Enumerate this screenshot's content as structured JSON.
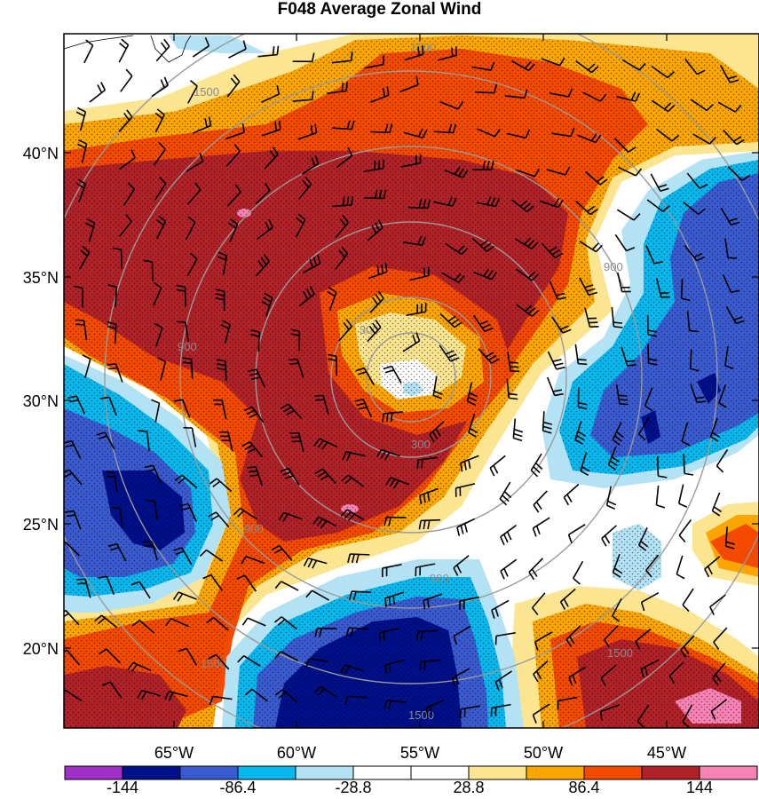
{
  "title": "F048 Average Zonal Wind",
  "lat_labels": [
    "40°N",
    "35°N",
    "30°N",
    "25°N",
    "20°N"
  ],
  "lon_labels": [
    "65°W",
    "60°W",
    "55°W",
    "50°W",
    "45°W"
  ],
  "colorbar": {
    "labels": [
      "-144",
      "-86.4",
      "-28.8",
      "28.8",
      "86.4",
      "144"
    ],
    "colors": [
      "#a030c8",
      "#00108a",
      "#3a5bd0",
      "#06b8ee",
      "#b3e2f5",
      "#ffffff",
      "#ffffff",
      "#fbe590",
      "#fba500",
      "#f44a00",
      "#b02228",
      "#f782b4"
    ]
  },
  "range_rings": [
    "1500",
    "1500",
    "1500",
    "900",
    "900",
    "900",
    "300",
    "300",
    "1500",
    "1500",
    "900"
  ],
  "palette": {
    "dark_red": "#b02228",
    "red_orange": "#f44a00",
    "orange": "#fba500",
    "yellow": "#fbe590",
    "light_blue": "#b3e2f5",
    "cyan": "#06b8ee",
    "blue": "#3a5bd0",
    "navy": "#00108a",
    "pink": "#f782b4"
  }
}
